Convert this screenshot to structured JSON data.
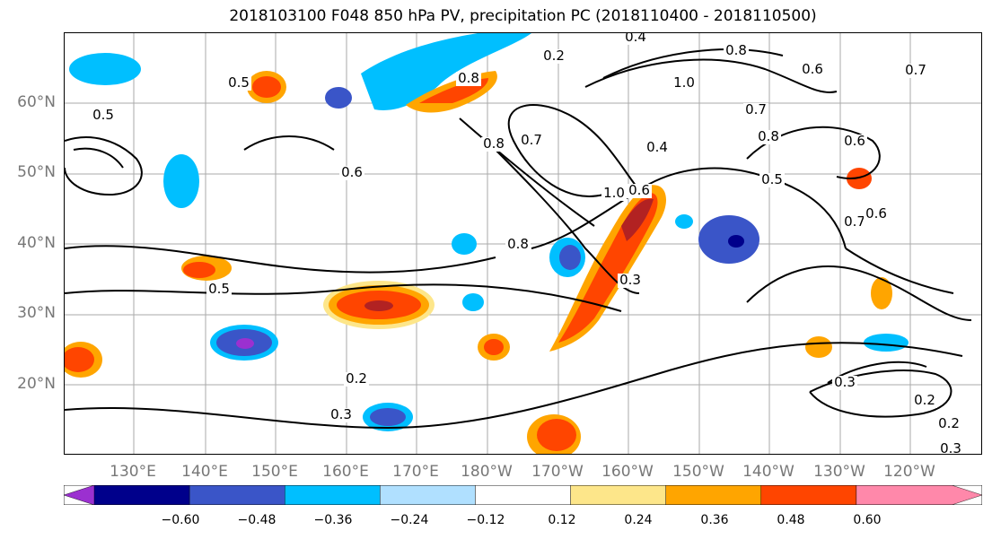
{
  "title": "2018103100 F048 850 hPa PV, precipitation PC (2018110400 - 2018110500)",
  "lat_labels": [
    "60°N",
    "50°N",
    "40°N",
    "30°N",
    "20°N"
  ],
  "lon_labels": [
    "130°E",
    "140°E",
    "150°E",
    "160°E",
    "170°E",
    "180°W",
    "170°W",
    "160°W",
    "150°W",
    "140°W",
    "130°W",
    "120°W"
  ],
  "contour_labels": [
    "0.5",
    "0.4",
    "0.8",
    "0.6",
    "0.7",
    "1.0",
    "0.8",
    "0.5",
    "0.7",
    "0.8",
    "0.5",
    "0.7",
    "0.6",
    "1.0",
    "0.4",
    "0.8",
    "0.7",
    "0.6",
    "0.5",
    "0.3",
    "0.2",
    "0.3",
    "0.6",
    "0.2",
    "0.3",
    "0.2",
    "0.3",
    "0.2",
    "0.8",
    "0.6"
  ],
  "colorbar": {
    "ticks": [
      "−0.60",
      "−0.48",
      "−0.36",
      "−0.24",
      "−0.12",
      "0.12",
      "0.24",
      "0.36",
      "0.48",
      "0.60"
    ],
    "colors": [
      "#9b30d0",
      "#00008b",
      "#3a55c8",
      "#00bfff",
      "#b0e0ff",
      "#ffffff",
      "#fde68a",
      "#ffa500",
      "#ff4500",
      "#b22222",
      "#ff88aa"
    ]
  }
}
